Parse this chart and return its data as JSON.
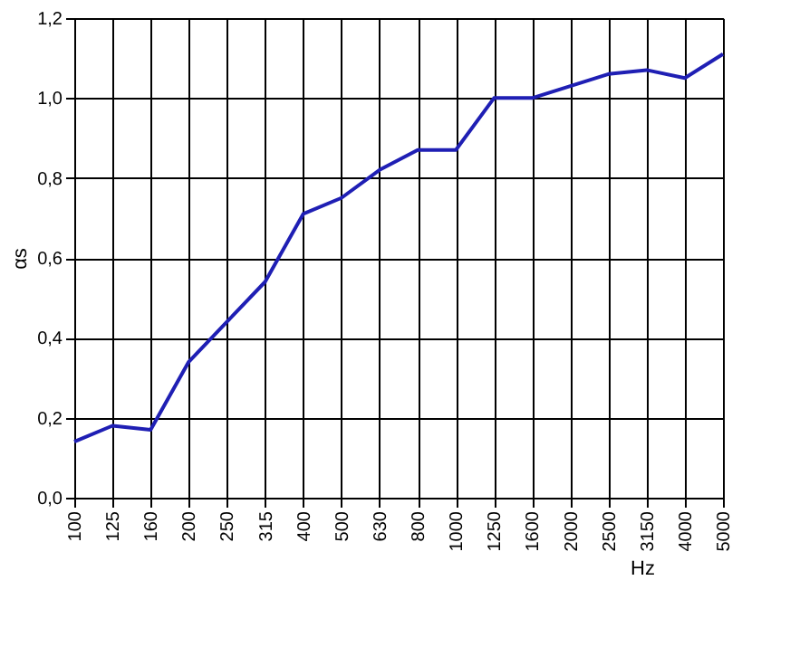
{
  "chart_data": {
    "type": "line",
    "xlabel": "Hz",
    "ylabel": "αs",
    "categories": [
      "100",
      "125",
      "160",
      "200",
      "250",
      "315",
      "400",
      "500",
      "630",
      "800",
      "1000",
      "1250",
      "1600",
      "2000",
      "2500",
      "3150",
      "4000",
      "5000"
    ],
    "series": [
      {
        "color": "#1f1fb4",
        "values": [
          0.14,
          0.18,
          0.17,
          0.34,
          0.44,
          0.54,
          0.71,
          0.75,
          0.82,
          0.87,
          0.87,
          1.0,
          1.0,
          1.03,
          1.06,
          1.07,
          1.05,
          1.11
        ]
      }
    ],
    "ylim": [
      0,
      1.2
    ],
    "yticks": [
      {
        "value": 0,
        "label": "0,0"
      },
      {
        "value": 0.2,
        "label": "0,2"
      },
      {
        "value": 0.4,
        "label": "0,4"
      },
      {
        "value": 0.6,
        "label": "0,6"
      },
      {
        "value": 0.8,
        "label": "0,8"
      },
      {
        "value": 1.0,
        "label": "1,0"
      },
      {
        "value": 1.2,
        "label": "1,2"
      }
    ],
    "grid": true,
    "legend": false,
    "marker": "none",
    "line_style": "solid"
  }
}
